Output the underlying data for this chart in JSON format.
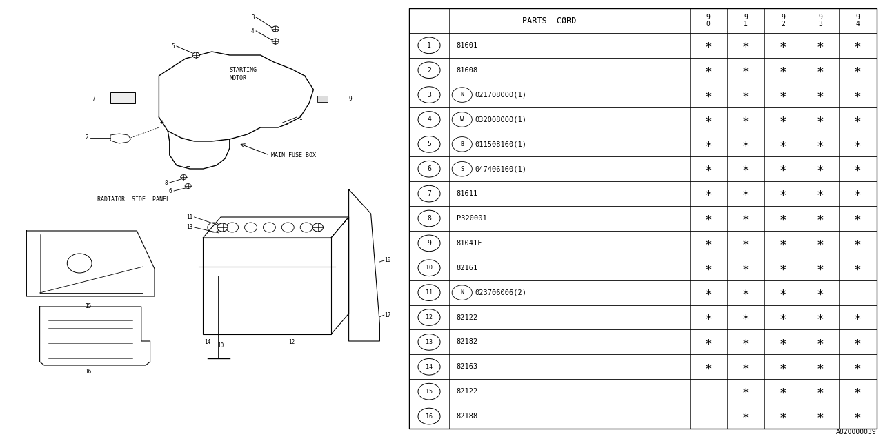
{
  "bg_color": "#ffffff",
  "rows": [
    [
      "1",
      "81601",
      true,
      true,
      true,
      true,
      true
    ],
    [
      "2",
      "81608",
      true,
      true,
      true,
      true,
      true
    ],
    [
      "3",
      "N|021708000(1)",
      true,
      true,
      true,
      true,
      true
    ],
    [
      "4",
      "W|032008000(1)",
      true,
      true,
      true,
      true,
      true
    ],
    [
      "5",
      "B|011508160(1)",
      true,
      true,
      true,
      true,
      true
    ],
    [
      "6",
      "S|047406160(1)",
      true,
      true,
      true,
      true,
      true
    ],
    [
      "7",
      "81611",
      true,
      true,
      true,
      true,
      true
    ],
    [
      "8",
      "P320001",
      true,
      true,
      true,
      true,
      true
    ],
    [
      "9",
      "81041F",
      true,
      true,
      true,
      true,
      true
    ],
    [
      "10",
      "82161",
      true,
      true,
      true,
      true,
      true
    ],
    [
      "11",
      "N|023706006(2)",
      true,
      true,
      true,
      true,
      false
    ],
    [
      "12",
      "82122",
      true,
      true,
      true,
      true,
      true
    ],
    [
      "13",
      "82182",
      true,
      true,
      true,
      true,
      true
    ],
    [
      "14",
      "82163",
      true,
      true,
      true,
      true,
      true
    ],
    [
      "15",
      "82122",
      false,
      true,
      true,
      true,
      true
    ],
    [
      "16",
      "82188",
      false,
      true,
      true,
      true,
      true
    ]
  ],
  "footnote": "A820000039"
}
